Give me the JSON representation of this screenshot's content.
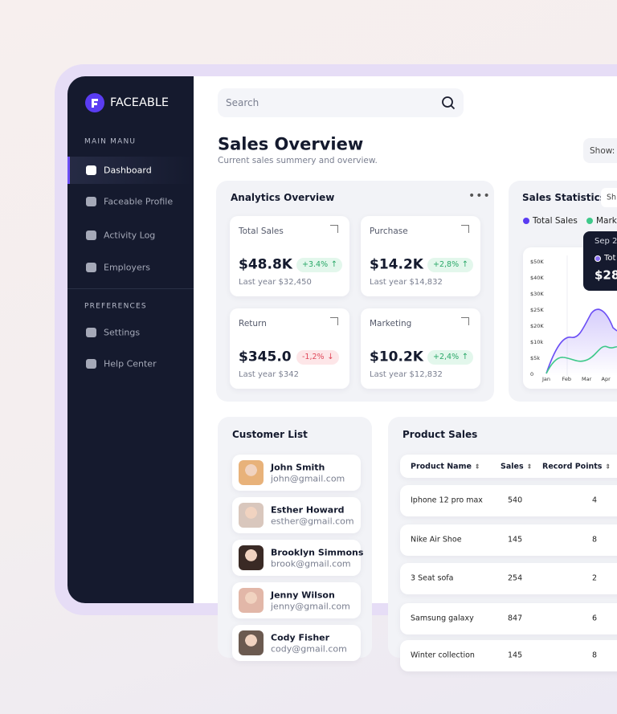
{
  "brand": {
    "name": "FACEABLE"
  },
  "sidebar": {
    "sections": [
      {
        "title": "MAIN MANU",
        "items": [
          "Dashboard",
          "Faceable Profile",
          "Activity Log",
          "Employers"
        ]
      },
      {
        "title": "PREFERENCES",
        "items": [
          "Settings",
          "Help Center"
        ]
      }
    ]
  },
  "search": {
    "placeholder": "Search"
  },
  "header": {
    "title": "Sales Overview",
    "subtitle": "Current sales summery and overview.",
    "filter": "Show: T"
  },
  "analytics": {
    "title": "Analytics Overview",
    "cards": [
      {
        "label": "Total Sales",
        "value": "$48.8K",
        "change": "+3.4%",
        "trend": "up",
        "last": "Last year $32,450"
      },
      {
        "label": "Purchase",
        "value": "$14.2K",
        "change": "+2,8%",
        "trend": "up",
        "last": "Last year $14,832"
      },
      {
        "label": "Return",
        "value": "$345.0",
        "change": "-1,2%",
        "trend": "down",
        "last": "Last year $342"
      },
      {
        "label": "Marketing",
        "value": "$10.2K",
        "change": "+2,4%",
        "trend": "up",
        "last": "Last year $12,832"
      }
    ]
  },
  "statistics": {
    "title": "Sales Statistics",
    "filter": "Sh",
    "legend": [
      "Total Sales",
      "Marke"
    ],
    "y_labels": [
      "$50K",
      "$40K",
      "$30K",
      "$25K",
      "$20K",
      "$10k",
      "$5k",
      "0"
    ],
    "x_labels": [
      "Jan",
      "Feb",
      "Mar",
      "Apr"
    ],
    "tooltip": {
      "date": "Sep 2",
      "series": "Tot",
      "value": "$28"
    }
  },
  "customers": {
    "title": "Customer List",
    "items": [
      {
        "name": "John Smith",
        "email": "john@gmail.com"
      },
      {
        "name": "Esther Howard",
        "email": "esther@gmail.com"
      },
      {
        "name": "Brooklyn Simmons",
        "email": "brook@gmail.com"
      },
      {
        "name": "Jenny Wilson",
        "email": "jenny@gmail.com"
      },
      {
        "name": "Cody Fisher",
        "email": "cody@gmail.com"
      }
    ]
  },
  "products": {
    "title": "Product Sales",
    "columns": [
      "Product Name",
      "Sales",
      "Record Points"
    ],
    "rows": [
      [
        "Iphone 12 pro max",
        "540",
        "4"
      ],
      [
        "Nike Air Shoe",
        "145",
        "8"
      ],
      [
        "3 Seat sofa",
        "254",
        "2"
      ],
      [
        "Samsung galaxy",
        "847",
        "6"
      ],
      [
        "Winter collection",
        "145",
        "8"
      ]
    ]
  }
}
